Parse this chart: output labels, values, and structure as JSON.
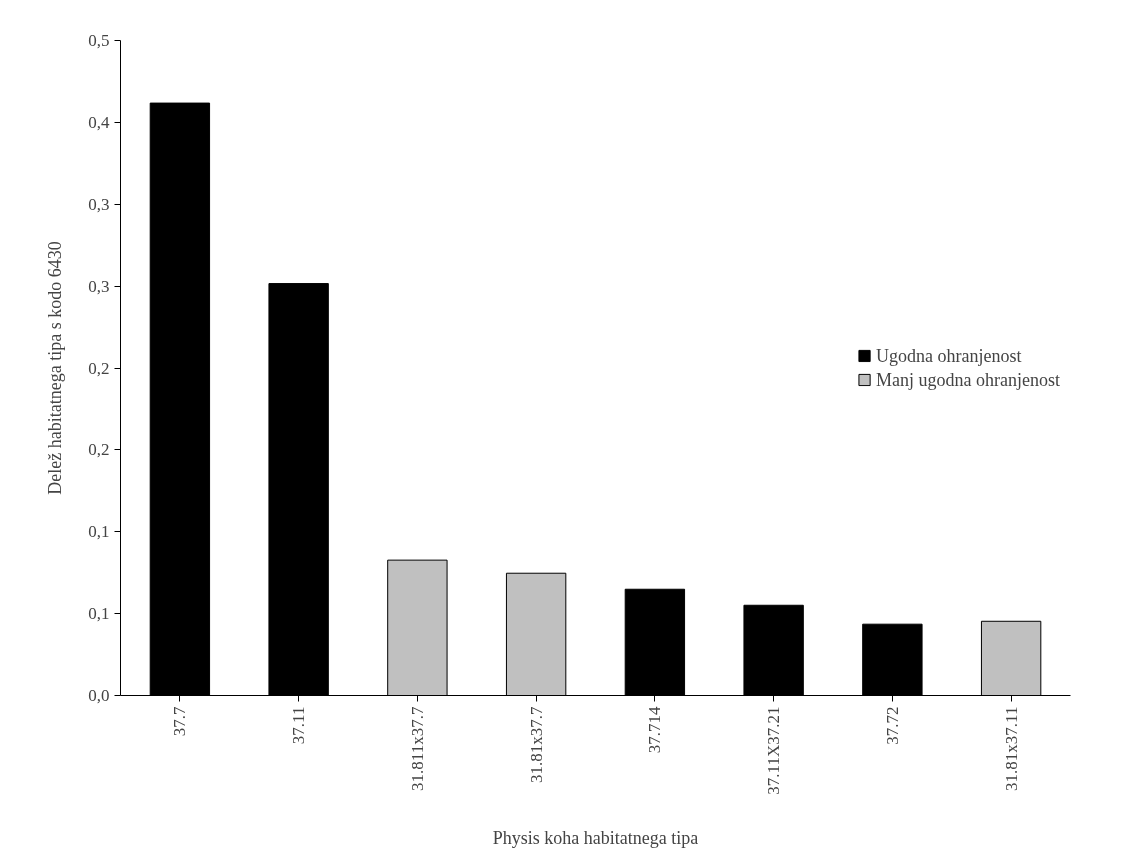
{
  "chart_data": {
    "type": "bar",
    "xlabel": "Physis koha habitatnega tipa",
    "ylabel": "Delež habitatnega tipa s kodo 6430",
    "categories": [
      "37.7",
      "37.11",
      "31.811x37.7",
      "31.81x37.7",
      "37.714",
      "37.11X37.21",
      "37.72",
      "31.81x37.11"
    ],
    "series": [
      {
        "name": "Ugodna ohranjenost",
        "color": "#000000",
        "values": [
          0.407,
          0.283,
          null,
          null,
          0.073,
          0.062,
          0.049,
          null
        ]
      },
      {
        "name": "Manj ugodna ohranjenost",
        "color": "#c0c0c0",
        "values": [
          null,
          null,
          0.093,
          0.084,
          null,
          null,
          null,
          0.051
        ]
      }
    ],
    "ylim": [
      0,
      0.45
    ],
    "yticks": [
      {
        "value": 0,
        "label": "0,0"
      },
      {
        "value": 0.05625,
        "label": "0,1"
      },
      {
        "value": 0.1125,
        "label": "0,1"
      },
      {
        "value": 0.16875,
        "label": "0,2"
      },
      {
        "value": 0.225,
        "label": "0,2"
      },
      {
        "value": 0.28125,
        "label": "0,3"
      },
      {
        "value": 0.3375,
        "label": "0,3"
      },
      {
        "value": 0.39375,
        "label": "0,4"
      },
      {
        "value": 0.45,
        "label": "0,5"
      }
    ],
    "legend": "right",
    "grid": false
  }
}
